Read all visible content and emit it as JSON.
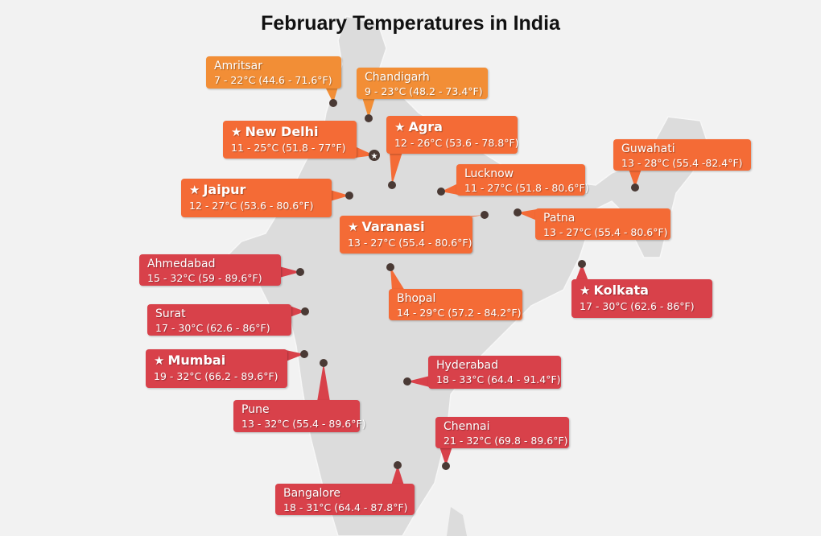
{
  "title": "February Temperatures in India",
  "colors": {
    "cool": "#f28e36",
    "mild": "#f46b36",
    "warm": "#d8414a",
    "dot": "#4a3a35",
    "land": "#dcdcdc",
    "border": "#f5f5f5"
  },
  "cities": [
    {
      "name": "Amritsar",
      "temp": "7 - 22°C (44.6 - 71.6°F)",
      "tier": "cool",
      "major": false
    },
    {
      "name": "Chandigarh",
      "temp": "9 - 23°C (48.2 - 73.4°F)",
      "tier": "cool",
      "major": false
    },
    {
      "name": "New Delhi",
      "temp": "11 - 25°C (51.8 - 77°F)",
      "tier": "mild",
      "major": true,
      "capital": true
    },
    {
      "name": "Agra",
      "temp": "12 - 26°C (53.6 - 78.8°F)",
      "tier": "mild",
      "major": true
    },
    {
      "name": "Jaipur",
      "temp": "12 - 27°C (53.6 - 80.6°F)",
      "tier": "mild",
      "major": true
    },
    {
      "name": "Lucknow",
      "temp": "11 - 27°C (51.8 - 80.6°F)",
      "tier": "mild",
      "major": false
    },
    {
      "name": "Guwahati",
      "temp": "13 - 28°C (55.4 -82.4°F)",
      "tier": "mild",
      "major": false
    },
    {
      "name": "Varanasi",
      "temp": "13 - 27°C (55.4 - 80.6°F)",
      "tier": "mild",
      "major": true
    },
    {
      "name": "Patna",
      "temp": "13 - 27°C (55.4 - 80.6°F)",
      "tier": "mild",
      "major": false
    },
    {
      "name": "Ahmedabad",
      "temp": "15 - 32°C (59 - 89.6°F)",
      "tier": "warm",
      "major": false
    },
    {
      "name": "Bhopal",
      "temp": "14 - 29°C (57.2 - 84.2°F)",
      "tier": "mild",
      "major": false
    },
    {
      "name": "Kolkata",
      "temp": "17 - 30°C (62.6 - 86°F)",
      "tier": "warm",
      "major": true
    },
    {
      "name": "Surat",
      "temp": "17 - 30°C (62.6 - 86°F)",
      "tier": "warm",
      "major": false
    },
    {
      "name": "Mumbai",
      "temp": "19 - 32°C (66.2 - 89.6°F)",
      "tier": "warm",
      "major": true
    },
    {
      "name": "Hyderabad",
      "temp": "18 - 33°C (64.4 - 91.4°F)",
      "tier": "warm",
      "major": false
    },
    {
      "name": "Pune",
      "temp": "13 - 32°C (55.4 - 89.6°F)",
      "tier": "warm",
      "major": false
    },
    {
      "name": "Chennai",
      "temp": "21 - 32°C (69.8 - 89.6°F)",
      "tier": "warm",
      "major": false
    },
    {
      "name": "Bangalore",
      "temp": "18 - 31°C (64.4 - 87.8°F)",
      "tier": "warm",
      "major": false
    }
  ]
}
